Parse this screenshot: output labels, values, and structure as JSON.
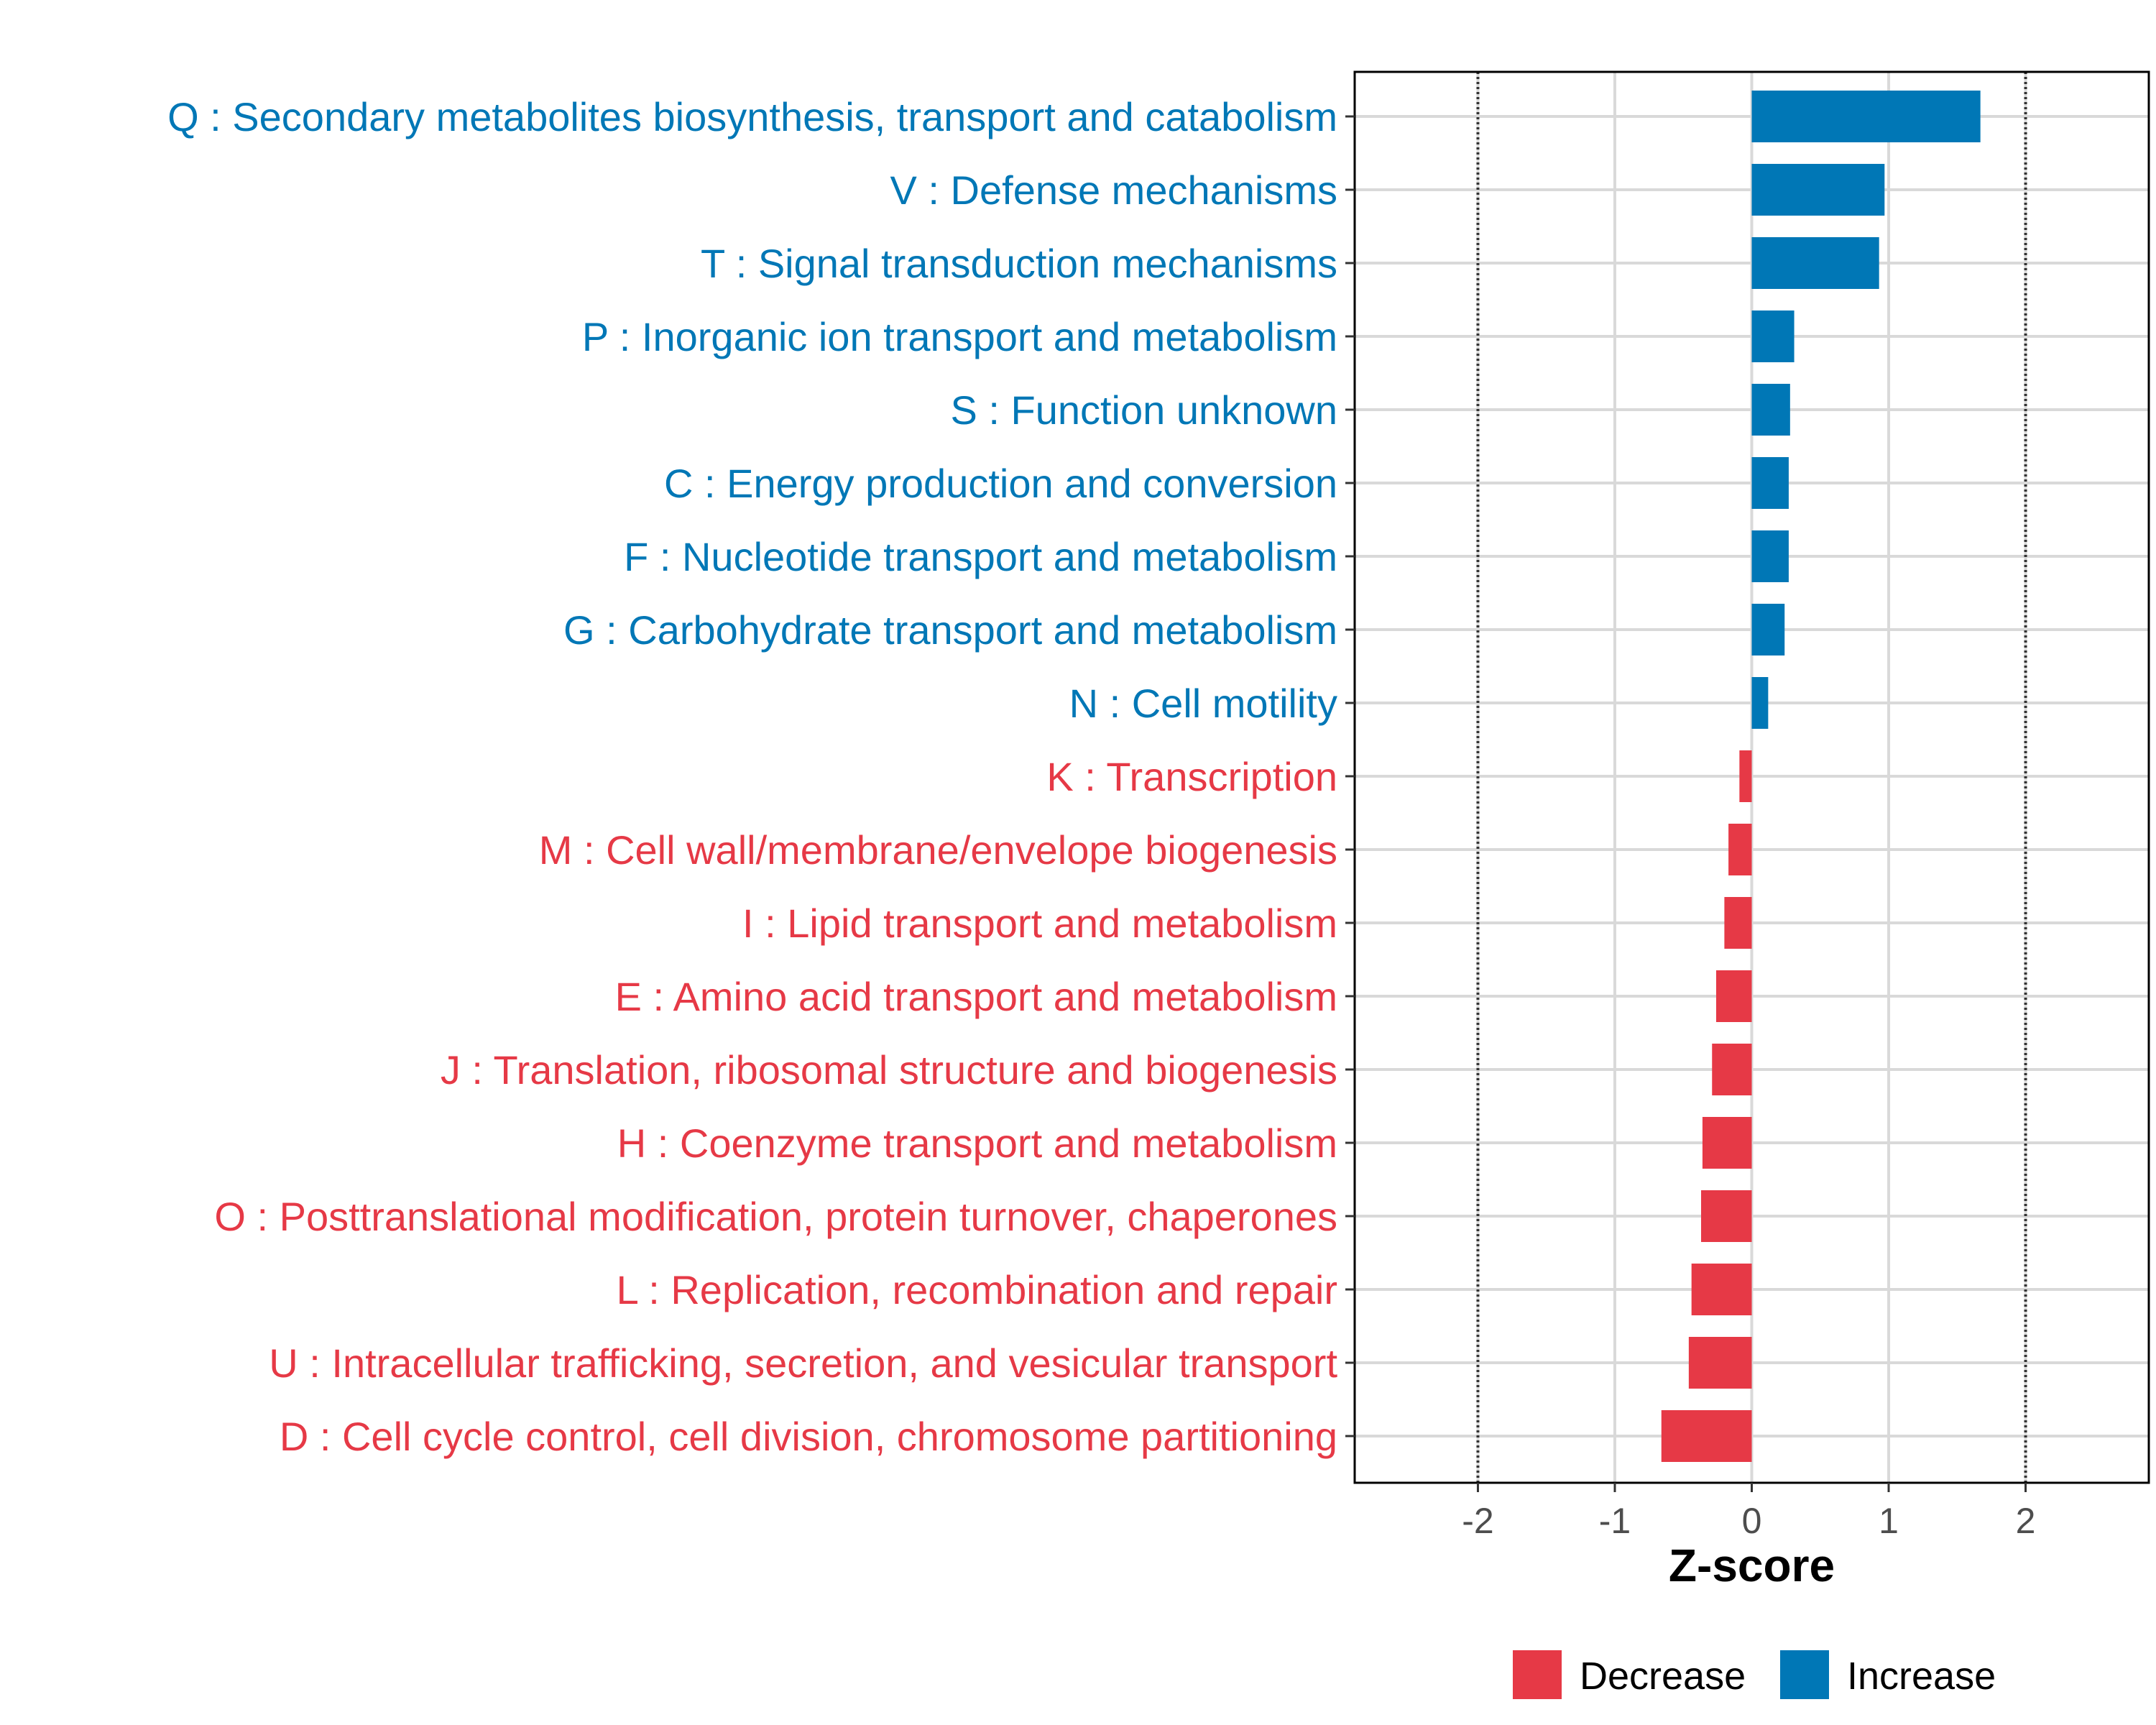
{
  "chart_data": {
    "type": "bar",
    "orientation": "horizontal",
    "title": "",
    "xlabel": "Z-score",
    "ylabel": "",
    "xlim": [
      -2.9,
      2.9
    ],
    "x_ticks": [
      -2,
      -1,
      0,
      1,
      2
    ],
    "x_tick_labels": [
      "-2",
      "-1",
      "0",
      "1",
      "2"
    ],
    "reference_lines": [
      -2,
      2
    ],
    "categories": [
      "Q : Secondary metabolites biosynthesis, transport and catabolism",
      "V : Defense mechanisms",
      "T : Signal transduction mechanisms",
      "P : Inorganic ion transport and metabolism",
      "S : Function unknown",
      "C : Energy production and conversion",
      "F : Nucleotide transport and metabolism",
      "G : Carbohydrate transport and metabolism",
      "N : Cell motility",
      "K : Transcription",
      "M : Cell wall/membrane/envelope biogenesis",
      "I : Lipid transport and metabolism",
      "E : Amino acid transport and metabolism",
      "J : Translation, ribosomal structure and biogenesis",
      "H : Coenzyme transport and metabolism",
      "O : Posttranslational modification, protein turnover, chaperones",
      "L : Replication, recombination and repair",
      "U : Intracellular trafficking, secretion, and vesicular transport",
      "D : Cell cycle control, cell division, chromosome partitioning"
    ],
    "values": [
      1.67,
      0.97,
      0.93,
      0.31,
      0.28,
      0.27,
      0.27,
      0.24,
      0.12,
      -0.09,
      -0.17,
      -0.2,
      -0.26,
      -0.29,
      -0.36,
      -0.37,
      -0.44,
      -0.46,
      -0.66
    ],
    "groups": [
      "Increase",
      "Increase",
      "Increase",
      "Increase",
      "Increase",
      "Increase",
      "Increase",
      "Increase",
      "Increase",
      "Decrease",
      "Decrease",
      "Decrease",
      "Decrease",
      "Decrease",
      "Decrease",
      "Decrease",
      "Decrease",
      "Decrease",
      "Decrease"
    ],
    "legend": {
      "position": "bottom",
      "entries": [
        {
          "label": "Decrease",
          "color": "#e63946"
        },
        {
          "label": "Increase",
          "color": "#0077b6"
        }
      ]
    },
    "colors": {
      "Increase": "#0077b6",
      "Decrease": "#e63946"
    }
  }
}
